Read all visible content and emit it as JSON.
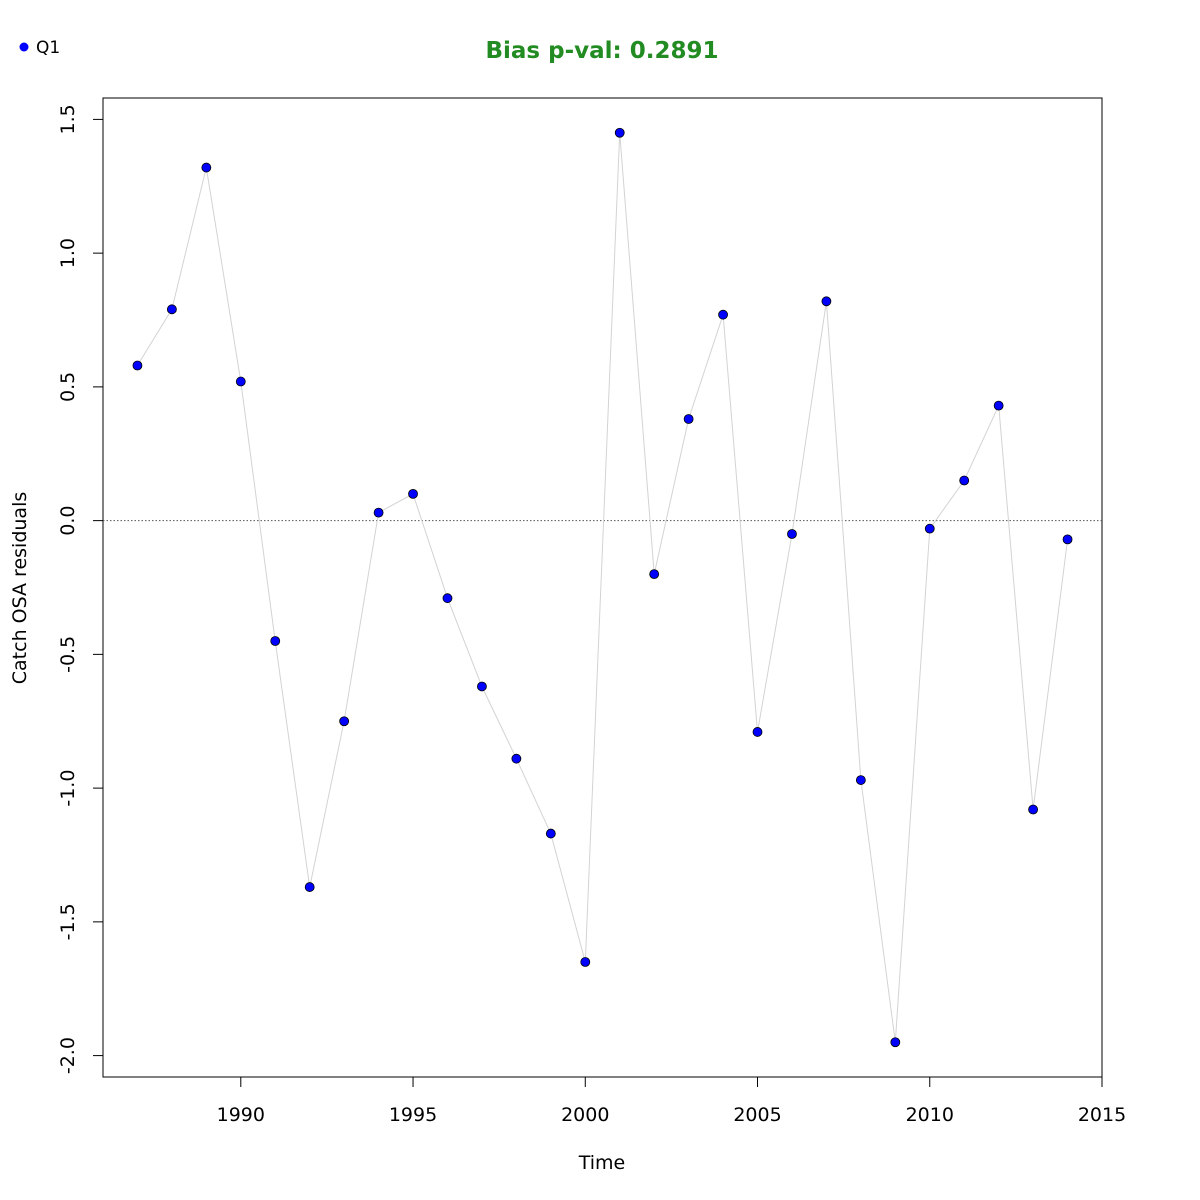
{
  "chart_data": {
    "type": "scatter",
    "title": "Bias p-val: 0.2891",
    "title_color": "#228B22",
    "xlabel": "Time",
    "ylabel": "Catch OSA residuals",
    "xlim": [
      1986,
      2015
    ],
    "ylim": [
      -2.08,
      1.58
    ],
    "x_ticks": [
      1990,
      1995,
      2000,
      2005,
      2010,
      2015
    ],
    "y_ticks": [
      -2.0,
      -1.5,
      -1.0,
      -0.5,
      0.0,
      0.5,
      1.0,
      1.5
    ],
    "y_tick_labels": [
      "-2.0",
      "-1.5",
      "-1.0",
      "-0.5",
      "0.0",
      "0.5",
      "1.0",
      "1.5"
    ],
    "reference_line": {
      "y": 0,
      "style": "dotted"
    },
    "connect_points": true,
    "legend": {
      "position": "top-left",
      "entries": [
        "Q1"
      ]
    },
    "series": [
      {
        "name": "Q1",
        "color": "#0000FF",
        "line_color": "#D3D3D3",
        "x": [
          1987,
          1988,
          1989,
          1990,
          1991,
          1992,
          1993,
          1994,
          1995,
          1996,
          1997,
          1998,
          1999,
          2000,
          2001,
          2002,
          2003,
          2004,
          2005,
          2006,
          2007,
          2008,
          2009,
          2010,
          2011,
          2012,
          2013,
          2014
        ],
        "y": [
          0.58,
          0.79,
          1.32,
          0.52,
          -0.45,
          -1.37,
          -0.75,
          0.03,
          0.1,
          -0.29,
          -0.62,
          -0.89,
          -1.17,
          -1.65,
          1.45,
          -0.2,
          0.38,
          0.77,
          -0.79,
          -0.05,
          0.82,
          -0.97,
          -1.95,
          -0.03,
          0.15,
          0.43,
          -1.08,
          -0.07
        ]
      }
    ]
  }
}
